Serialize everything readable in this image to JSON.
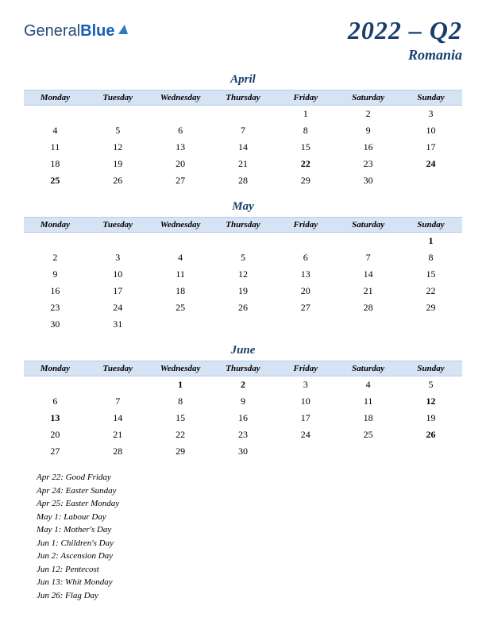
{
  "logo": {
    "text_general": "General",
    "text_blue": "Blue"
  },
  "title": {
    "main": "2022 – Q2",
    "sub": "Romania"
  },
  "day_headers": [
    "Monday",
    "Tuesday",
    "Wednesday",
    "Thursday",
    "Friday",
    "Saturday",
    "Sunday"
  ],
  "months": [
    {
      "name": "April",
      "weeks": [
        [
          null,
          null,
          null,
          null,
          {
            "d": 1
          },
          {
            "d": 2
          },
          {
            "d": 3
          }
        ],
        [
          {
            "d": 4
          },
          {
            "d": 5
          },
          {
            "d": 6
          },
          {
            "d": 7
          },
          {
            "d": 8
          },
          {
            "d": 9
          },
          {
            "d": 10
          }
        ],
        [
          {
            "d": 11
          },
          {
            "d": 12
          },
          {
            "d": 13
          },
          {
            "d": 14
          },
          {
            "d": 15
          },
          {
            "d": 16
          },
          {
            "d": 17
          }
        ],
        [
          {
            "d": 18
          },
          {
            "d": 19
          },
          {
            "d": 20
          },
          {
            "d": 21
          },
          {
            "d": 22,
            "h": true
          },
          {
            "d": 23
          },
          {
            "d": 24,
            "h": true
          }
        ],
        [
          {
            "d": 25,
            "h": true
          },
          {
            "d": 26
          },
          {
            "d": 27
          },
          {
            "d": 28
          },
          {
            "d": 29
          },
          {
            "d": 30
          },
          null
        ]
      ]
    },
    {
      "name": "May",
      "weeks": [
        [
          null,
          null,
          null,
          null,
          null,
          null,
          {
            "d": 1,
            "h": true
          }
        ],
        [
          {
            "d": 2
          },
          {
            "d": 3
          },
          {
            "d": 4
          },
          {
            "d": 5
          },
          {
            "d": 6
          },
          {
            "d": 7
          },
          {
            "d": 8
          }
        ],
        [
          {
            "d": 9
          },
          {
            "d": 10
          },
          {
            "d": 11
          },
          {
            "d": 12
          },
          {
            "d": 13
          },
          {
            "d": 14
          },
          {
            "d": 15
          }
        ],
        [
          {
            "d": 16
          },
          {
            "d": 17
          },
          {
            "d": 18
          },
          {
            "d": 19
          },
          {
            "d": 20
          },
          {
            "d": 21
          },
          {
            "d": 22
          }
        ],
        [
          {
            "d": 23
          },
          {
            "d": 24
          },
          {
            "d": 25
          },
          {
            "d": 26
          },
          {
            "d": 27
          },
          {
            "d": 28
          },
          {
            "d": 29
          }
        ],
        [
          {
            "d": 30
          },
          {
            "d": 31
          },
          null,
          null,
          null,
          null,
          null
        ]
      ]
    },
    {
      "name": "June",
      "weeks": [
        [
          null,
          null,
          {
            "d": 1,
            "h": true
          },
          {
            "d": 2,
            "h": true
          },
          {
            "d": 3
          },
          {
            "d": 4
          },
          {
            "d": 5
          }
        ],
        [
          {
            "d": 6
          },
          {
            "d": 7
          },
          {
            "d": 8
          },
          {
            "d": 9
          },
          {
            "d": 10
          },
          {
            "d": 11
          },
          {
            "d": 12,
            "h": true
          }
        ],
        [
          {
            "d": 13,
            "h": true
          },
          {
            "d": 14
          },
          {
            "d": 15
          },
          {
            "d": 16
          },
          {
            "d": 17
          },
          {
            "d": 18
          },
          {
            "d": 19
          }
        ],
        [
          {
            "d": 20
          },
          {
            "d": 21
          },
          {
            "d": 22
          },
          {
            "d": 23
          },
          {
            "d": 24
          },
          {
            "d": 25
          },
          {
            "d": 26,
            "h": true
          }
        ],
        [
          {
            "d": 27
          },
          {
            "d": 28
          },
          {
            "d": 29
          },
          {
            "d": 30
          },
          null,
          null,
          null
        ]
      ]
    }
  ],
  "holidays": [
    "Apr 22: Good Friday",
    "Apr 24: Easter Sunday",
    "Apr 25: Easter Monday",
    "May 1: Labour Day",
    "May 1: Mother's Day",
    "Jun 1: Children's Day",
    "Jun 2: Ascension Day",
    "Jun 12: Pentecost",
    "Jun 13: Whit Monday",
    "Jun 26: Flag Day"
  ],
  "colors": {
    "brand": "#1a3d6d",
    "header_bg": "#d6e3f4",
    "holiday": "#b02020"
  }
}
